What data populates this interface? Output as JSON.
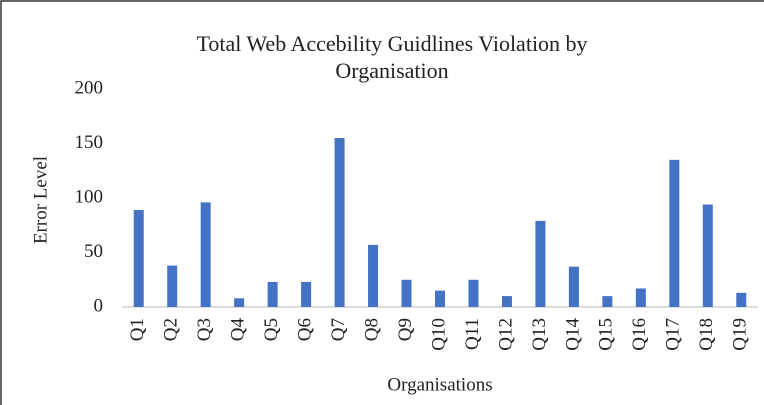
{
  "chart_data": {
    "type": "bar",
    "title": "Total Web Accebility Guidlines Violation by Organisation",
    "x_label": "Organisations",
    "y_label": "Error Level",
    "categories": [
      "Q1",
      "Q2",
      "Q3",
      "Q4",
      "Q5",
      "Q6",
      "Q7",
      "Q8",
      "Q9",
      "Q10",
      "Q11",
      "Q12",
      "Q13",
      "Q14",
      "Q15",
      "Q16",
      "Q17",
      "Q18",
      "Q19"
    ],
    "values": [
      89,
      38,
      96,
      8,
      23,
      23,
      155,
      57,
      25,
      15,
      25,
      10,
      79,
      37,
      10,
      17,
      135,
      94,
      13
    ],
    "color": "#4472c4",
    "ylim": [
      0,
      200
    ],
    "yticks": [
      0,
      50,
      100,
      150,
      200
    ],
    "grid": false
  }
}
